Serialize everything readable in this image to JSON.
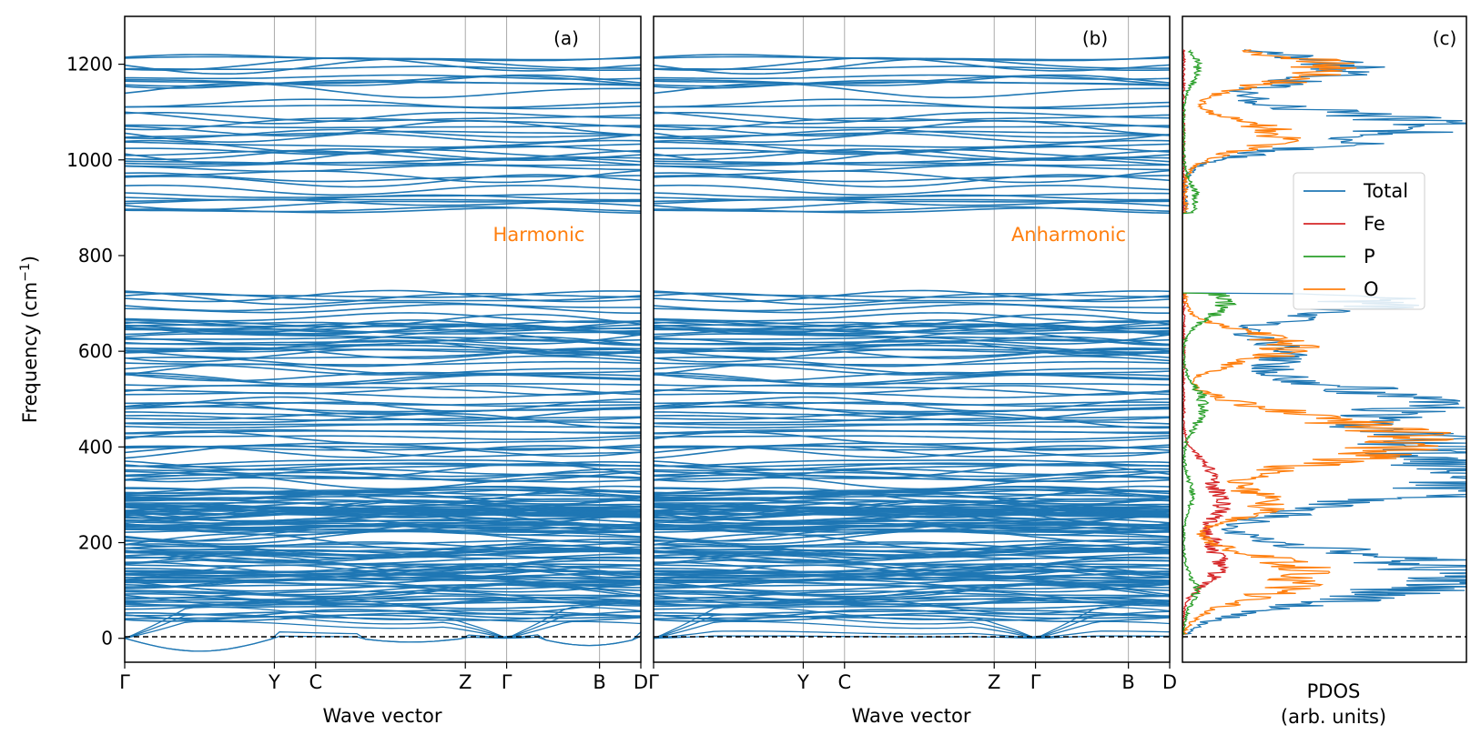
{
  "figure": {
    "ylabel": "Frequency (cm",
    "ylabel_sup": "−1",
    "ylabel_close": ")",
    "ylim": [
      -50,
      1300
    ],
    "yticks": [
      0,
      200,
      400,
      600,
      800,
      1000,
      1200
    ],
    "colors": {
      "bands": "#1f77b4",
      "total": "#1f77b4",
      "fe": "#d62728",
      "p": "#2ca02c",
      "o": "#ff7f0e",
      "annotation": "#ff7f0e",
      "kline": "#aaaaaa"
    }
  },
  "chart_data": [
    {
      "type": "line",
      "panel": "(a)",
      "annotation": "Harmonic",
      "xlabel": "Wave vector",
      "kpath_labels": [
        "Γ",
        "Y",
        "C",
        "Z",
        "Γ",
        "B",
        "D"
      ],
      "kpath_positions": [
        0,
        0.29,
        0.37,
        0.66,
        0.74,
        0.92,
        1.0
      ],
      "ylim": [
        -50,
        1300
      ],
      "band_frequency_groups_cm-1": [
        {
          "range": [
            -30,
            70
          ],
          "note": "acoustic branches; dip to about -30 between Γ and Y, small negative near Z"
        },
        {
          "range": [
            40,
            370
          ],
          "note": "dense manifold"
        },
        {
          "range": [
            380,
            720
          ],
          "note": "dense manifold with gap near 450-460 and 620-640"
        },
        {
          "range": [
            890,
            1225
          ],
          "note": "high-frequency P-O stretching bands"
        }
      ]
    },
    {
      "type": "line",
      "panel": "(b)",
      "annotation": "Anharmonic",
      "xlabel": "Wave vector",
      "kpath_labels": [
        "Γ",
        "Y",
        "C",
        "Z",
        "Γ",
        "B",
        "D"
      ],
      "kpath_positions": [
        0,
        0.29,
        0.37,
        0.66,
        0.74,
        0.92,
        1.0
      ],
      "ylim": [
        -50,
        1300
      ],
      "band_frequency_groups_cm-1": [
        {
          "range": [
            0,
            70
          ],
          "note": "acoustic branches, all non-negative"
        },
        {
          "range": [
            40,
            370
          ],
          "note": "dense manifold"
        },
        {
          "range": [
            380,
            720
          ],
          "note": "dense manifold"
        },
        {
          "range": [
            890,
            1225
          ],
          "note": "high-frequency bands"
        }
      ]
    },
    {
      "type": "line",
      "panel": "(c)",
      "xlabel": "PDOS\n(arb. units)",
      "xlabel_lines": [
        "PDOS",
        "(arb. units)"
      ],
      "ylim": [
        -50,
        1300
      ],
      "legend": [
        "Total",
        "Fe",
        "P",
        "O"
      ],
      "legend_location": "center-right",
      "series": [
        {
          "name": "Total",
          "peaks": [
            [
              90,
              0.6
            ],
            [
              130,
              0.75
            ],
            [
              170,
              0.65
            ],
            [
              280,
              0.55
            ],
            [
              330,
              0.8
            ],
            [
              350,
              0.7
            ],
            [
              410,
              0.95
            ],
            [
              480,
              0.75
            ],
            [
              520,
              0.55
            ],
            [
              600,
              0.45
            ],
            [
              700,
              0.9
            ],
            [
              1050,
              0.6
            ],
            [
              1080,
              0.7
            ],
            [
              1190,
              0.75
            ]
          ]
        },
        {
          "name": "Fe",
          "peaks": [
            [
              140,
              0.15
            ],
            [
              200,
              0.12
            ],
            [
              280,
              0.17
            ],
            [
              350,
              0.12
            ]
          ]
        },
        {
          "name": "P",
          "peaks": [
            [
              100,
              0.06
            ],
            [
              300,
              0.04
            ],
            [
              460,
              0.05
            ],
            [
              500,
              0.07
            ],
            [
              700,
              0.2
            ],
            [
              920,
              0.06
            ],
            [
              1190,
              0.07
            ]
          ]
        },
        {
          "name": "O",
          "peaks": [
            [
              100,
              0.35
            ],
            [
              150,
              0.45
            ],
            [
              280,
              0.4
            ],
            [
              370,
              0.35
            ],
            [
              410,
              0.87
            ],
            [
              460,
              0.45
            ],
            [
              610,
              0.5
            ],
            [
              1050,
              0.45
            ],
            [
              1190,
              0.7
            ]
          ]
        }
      ]
    }
  ]
}
